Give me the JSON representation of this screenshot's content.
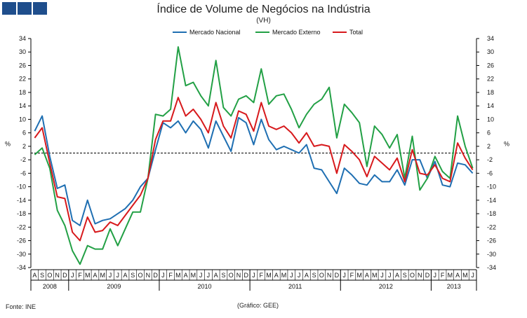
{
  "header": {
    "title": "Índice de Volume de Negócios na Indústria",
    "subtitle": "(VH)"
  },
  "footer": {
    "source": "Fonte: INE",
    "credit": "(Gráfico: GEE)"
  },
  "colors": {
    "logo": "#1f4e8c",
    "mercado_nacional": "#1f6fb2",
    "mercado_externo": "#22a045",
    "total": "#d7191c"
  },
  "chart_data": {
    "type": "line",
    "title": "Índice de Volume de Negócios na Indústria",
    "subtitle": "(VH)",
    "ylabel_left": "%",
    "ylabel_right": "%",
    "ylim": [
      -34,
      34
    ],
    "yticks": [
      34,
      30,
      26,
      22,
      18,
      14,
      10,
      6,
      2,
      -2,
      -6,
      -10,
      -14,
      -18,
      -22,
      -26,
      -30,
      -34
    ],
    "legend_position": "top-center",
    "months": [
      "A",
      "S",
      "O",
      "N",
      "D",
      "J",
      "F",
      "M",
      "A",
      "M",
      "J",
      "J",
      "A",
      "S",
      "O",
      "N",
      "D",
      "J",
      "F",
      "M",
      "A",
      "M",
      "J",
      "J",
      "A",
      "S",
      "O",
      "N",
      "D",
      "J",
      "F",
      "M",
      "A",
      "M",
      "J",
      "J",
      "A",
      "S",
      "O",
      "N",
      "D",
      "J",
      "F",
      "M",
      "A",
      "M",
      "J",
      "J",
      "A",
      "S",
      "O",
      "N",
      "D",
      "J",
      "F",
      "M",
      "A",
      "M",
      "J"
    ],
    "years": [
      {
        "label": "2008",
        "start": 0,
        "end": 4
      },
      {
        "label": "2009",
        "start": 5,
        "end": 16
      },
      {
        "label": "2010",
        "start": 17,
        "end": 28
      },
      {
        "label": "2011",
        "start": 29,
        "end": 40
      },
      {
        "label": "2012",
        "start": 41,
        "end": 52
      },
      {
        "label": "2013",
        "start": 53,
        "end": 58
      }
    ],
    "series": [
      {
        "name": "Mercado Nacional",
        "values": [
          6.5,
          11,
          -1,
          -10.5,
          -9.5,
          -20,
          -21.5,
          -14,
          -21,
          -20,
          -19.5,
          -18,
          -16.5,
          -14,
          -10,
          -7.5,
          1,
          9,
          7.5,
          9.5,
          6,
          9.5,
          7,
          1.5,
          9.5,
          5,
          0.5,
          10.5,
          9,
          2.5,
          10,
          4,
          1,
          2,
          1,
          0,
          2.5,
          -4.5,
          -5,
          -8.5,
          -12,
          -4.5,
          -6.5,
          -9,
          -9.5,
          -6.5,
          -8.5,
          -8.5,
          -5,
          -9.5,
          -2,
          -2,
          -7.5,
          -2.5,
          -9.5,
          -10,
          -3,
          -3.5,
          -6
        ]
      },
      {
        "name": "Mercado Externo",
        "values": [
          -0.5,
          1.5,
          -4.5,
          -17,
          -21.5,
          -29,
          -33,
          -27.5,
          -28.5,
          -28.5,
          -22.5,
          -27.5,
          -22.5,
          -17.5,
          -17.5,
          -7.5,
          11.5,
          11,
          13,
          31.5,
          20,
          21,
          17,
          14,
          27.5,
          13.5,
          11,
          16,
          17,
          15,
          25,
          14.5,
          17,
          17.5,
          13,
          7.5,
          11.5,
          14.5,
          16,
          19.5,
          4.5,
          14.5,
          12,
          9,
          -4,
          8,
          5.5,
          1.5,
          5.5,
          -7.5,
          5,
          -11,
          -7.5,
          -1,
          -5.5,
          -7.5,
          11,
          2,
          -4.5
        ]
      },
      {
        "name": "Total",
        "values": [
          4.5,
          7.5,
          -3,
          -13,
          -13.5,
          -23.5,
          -26,
          -19,
          -23.5,
          -23,
          -20.5,
          -21.5,
          -18.5,
          -15.5,
          -12.5,
          -7.5,
          4,
          9.5,
          9.5,
          16.5,
          11,
          13,
          10,
          6,
          15,
          8,
          4.5,
          12.5,
          11.5,
          6.5,
          15,
          8,
          7,
          8,
          6,
          3,
          6,
          2,
          2.5,
          2,
          -6,
          2.5,
          0.5,
          -2,
          -7,
          -1,
          -3,
          -5,
          -1.5,
          -8.5,
          1,
          -6,
          -6.5,
          -3.5,
          -7.5,
          -8.5,
          3,
          -1.5,
          -5
        ]
      }
    ]
  }
}
